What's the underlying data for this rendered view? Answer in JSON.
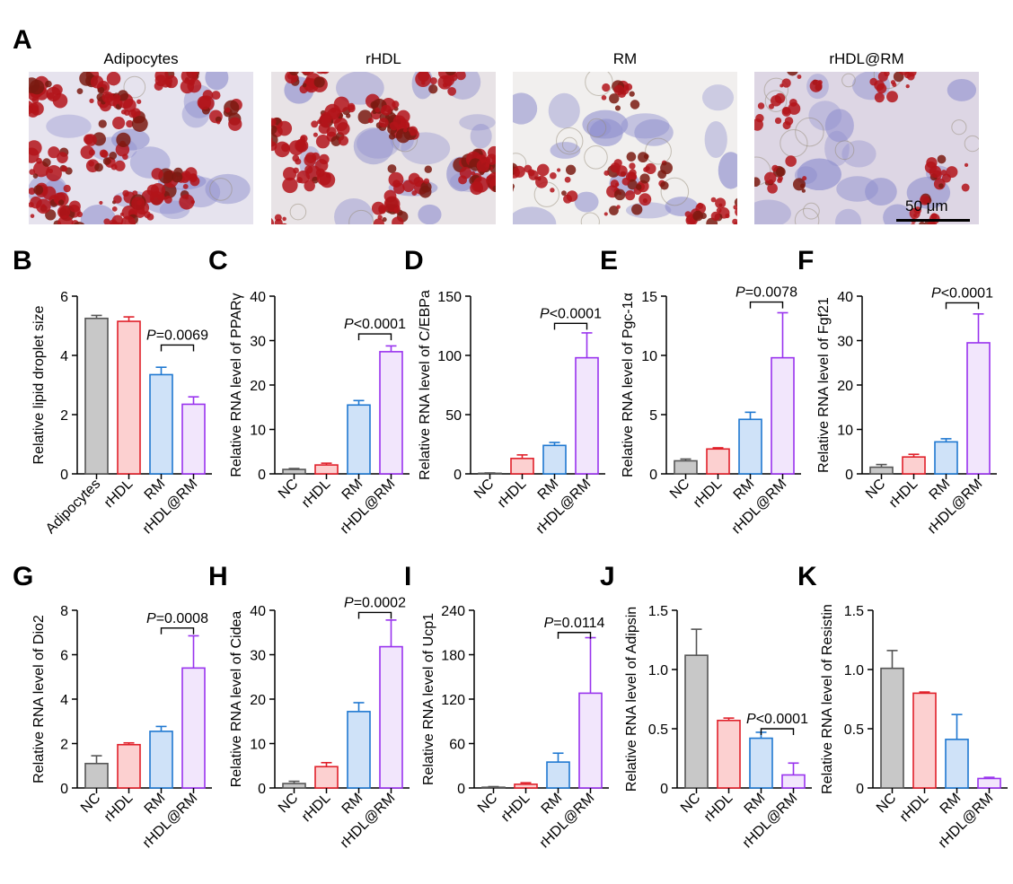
{
  "panel_a": {
    "letter": "A",
    "images": [
      {
        "title": "Adipocytes"
      },
      {
        "title": "rHDL"
      },
      {
        "title": "RM"
      },
      {
        "title": "rHDL@RM"
      }
    ],
    "scale_bar_label": "50 μm"
  },
  "colors": {
    "fills": [
      "#c8c8c8",
      "#fcd0d0",
      "#cfe2f8",
      "#f2e6fc"
    ],
    "strokes": [
      "#555555",
      "#e0202a",
      "#1f78d1",
      "#9933ee"
    ]
  },
  "chart_data": [
    {
      "id": "B",
      "letter": "B",
      "type": "bar",
      "ylabel": "Relative lipid droplet size",
      "categories": [
        "Adipocytes",
        "rHDL",
        "RM",
        "rHDL@RM"
      ],
      "values": [
        5.25,
        5.15,
        3.35,
        2.35
      ],
      "errors": [
        0.1,
        0.15,
        0.25,
        0.25
      ],
      "ylim": [
        0,
        6
      ],
      "yticks": [
        0,
        2,
        4,
        6
      ],
      "tick_labels": [
        "0",
        "2",
        "4",
        "6"
      ],
      "pvalue": {
        "italic": "P",
        "text": "=0.0069",
        "from": 2,
        "to": 3,
        "level": 4.35
      }
    },
    {
      "id": "C",
      "letter": "C",
      "type": "bar",
      "ylabel": "Relative RNA level of PPARγ",
      "categories": [
        "NC",
        "rHDL",
        "RM",
        "rHDL@RM"
      ],
      "values": [
        1,
        2,
        15.5,
        27.5
      ],
      "errors": [
        0.2,
        0.4,
        1.0,
        1.3
      ],
      "ylim": [
        0,
        40
      ],
      "yticks": [
        0,
        10,
        20,
        30,
        40
      ],
      "tick_labels": [
        "0",
        "10",
        "20",
        "30",
        "40"
      ],
      "pvalue": {
        "italic": "P",
        "text": "<0.0001",
        "from": 2,
        "to": 3,
        "level": 31.5
      }
    },
    {
      "id": "D",
      "letter": "D",
      "type": "bar",
      "ylabel": "Relative RNA level of C/EBPa",
      "categories": [
        "NC",
        "rHDL",
        "RM",
        "rHDL@RM"
      ],
      "values": [
        0.5,
        13,
        24,
        98
      ],
      "errors": [
        0.3,
        3,
        2.5,
        21
      ],
      "ylim": [
        0,
        150
      ],
      "yticks": [
        0,
        50,
        100,
        150
      ],
      "tick_labels": [
        "0",
        "50",
        "100",
        "150"
      ],
      "pvalue": {
        "italic": "P",
        "text": "<0.0001",
        "from": 2,
        "to": 3,
        "level": 127
      }
    },
    {
      "id": "E",
      "letter": "E",
      "type": "bar",
      "ylabel": "Relative RNA level of Pgc-1α",
      "categories": [
        "NC",
        "rHDL",
        "RM",
        "rHDL@RM"
      ],
      "values": [
        1.1,
        2.1,
        4.6,
        9.8
      ],
      "errors": [
        0.15,
        0.1,
        0.6,
        3.8
      ],
      "ylim": [
        0,
        15
      ],
      "yticks": [
        0,
        5,
        10,
        15
      ],
      "tick_labels": [
        "0",
        "5",
        "10",
        "15"
      ],
      "pvalue": {
        "italic": "P",
        "text": "=0.0078",
        "from": 2,
        "to": 3,
        "level": 14.5
      }
    },
    {
      "id": "F",
      "letter": "F",
      "type": "bar",
      "ylabel": "Relative RNA level of Fgf21",
      "categories": [
        "NC",
        "rHDL",
        "RM",
        "rHDL@RM"
      ],
      "values": [
        1.5,
        3.8,
        7.2,
        29.5
      ],
      "errors": [
        0.6,
        0.6,
        0.7,
        6.5
      ],
      "ylim": [
        0,
        40
      ],
      "yticks": [
        0,
        10,
        20,
        30,
        40
      ],
      "tick_labels": [
        "0",
        "10",
        "20",
        "30",
        "40"
      ],
      "pvalue": {
        "italic": "P",
        "text": "<0.0001",
        "from": 2,
        "to": 3,
        "level": 38.5
      }
    },
    {
      "id": "G",
      "letter": "G",
      "type": "bar",
      "ylabel": "Relative RNA level of Dio2",
      "categories": [
        "NC",
        "rHDL",
        "RM",
        "rHDL@RM"
      ],
      "values": [
        1.1,
        1.95,
        2.55,
        5.4
      ],
      "errors": [
        0.35,
        0.08,
        0.22,
        1.45
      ],
      "ylim": [
        0,
        8
      ],
      "yticks": [
        0,
        2,
        4,
        6,
        8
      ],
      "tick_labels": [
        "0",
        "2",
        "4",
        "6",
        "8"
      ],
      "pvalue": {
        "italic": "P",
        "text": "=0.0008",
        "from": 2,
        "to": 3,
        "level": 7.2
      }
    },
    {
      "id": "H",
      "letter": "H",
      "type": "bar",
      "ylabel": "Relative RNA level of Cidea",
      "categories": [
        "NC",
        "rHDL",
        "RM",
        "rHDL@RM"
      ],
      "values": [
        1,
        4.8,
        17.2,
        31.8
      ],
      "errors": [
        0.5,
        0.9,
        2.0,
        6.0
      ],
      "ylim": [
        0,
        40
      ],
      "yticks": [
        0,
        10,
        20,
        30,
        40
      ],
      "tick_labels": [
        "0",
        "10",
        "20",
        "30",
        "40"
      ],
      "pvalue": {
        "italic": "P",
        "text": "=0.0002",
        "from": 2,
        "to": 3,
        "level": 39.5
      }
    },
    {
      "id": "I",
      "letter": "I",
      "type": "bar",
      "ylabel": "Relative RNA level of Ucp1",
      "categories": [
        "NC",
        "rHDL",
        "RM",
        "rHDL@RM"
      ],
      "values": [
        1,
        5,
        35,
        128
      ],
      "errors": [
        0.8,
        2,
        12,
        75
      ],
      "ylim": [
        0,
        240
      ],
      "yticks": [
        0,
        60,
        120,
        180,
        240
      ],
      "tick_labels": [
        "0",
        "60",
        "120",
        "180",
        "240"
      ],
      "pvalue": {
        "italic": "P",
        "text": "=0.0114",
        "from": 2,
        "to": 3,
        "level": 210
      }
    },
    {
      "id": "J",
      "letter": "J",
      "type": "bar",
      "ylabel": "Relative RNA level of Adipsin",
      "categories": [
        "NC",
        "rHDL",
        "RM",
        "rHDL@RM"
      ],
      "values": [
        1.12,
        0.57,
        0.42,
        0.11
      ],
      "errors": [
        0.22,
        0.02,
        0.05,
        0.1
      ],
      "ylim": [
        0,
        1.5
      ],
      "yticks": [
        0,
        0.5,
        1.0,
        1.5
      ],
      "tick_labels": [
        "0",
        "0.5",
        "1.0",
        "1.5"
      ],
      "pvalue": {
        "italic": "P",
        "text": "<0.0001",
        "from": 2,
        "to": 3,
        "level": 0.5
      }
    },
    {
      "id": "K",
      "letter": "K",
      "type": "bar",
      "ylabel": "Relative RNA level of Resistin",
      "categories": [
        "NC",
        "rHDL",
        "RM",
        "rHDL@RM"
      ],
      "values": [
        1.01,
        0.8,
        0.41,
        0.08
      ],
      "errors": [
        0.15,
        0.01,
        0.21,
        0.01
      ],
      "ylim": [
        0,
        1.5
      ],
      "yticks": [
        0,
        0.5,
        1.0,
        1.5
      ],
      "tick_labels": [
        "0",
        "0.5",
        "1.0",
        "1.5"
      ],
      "pvalue": null
    }
  ]
}
